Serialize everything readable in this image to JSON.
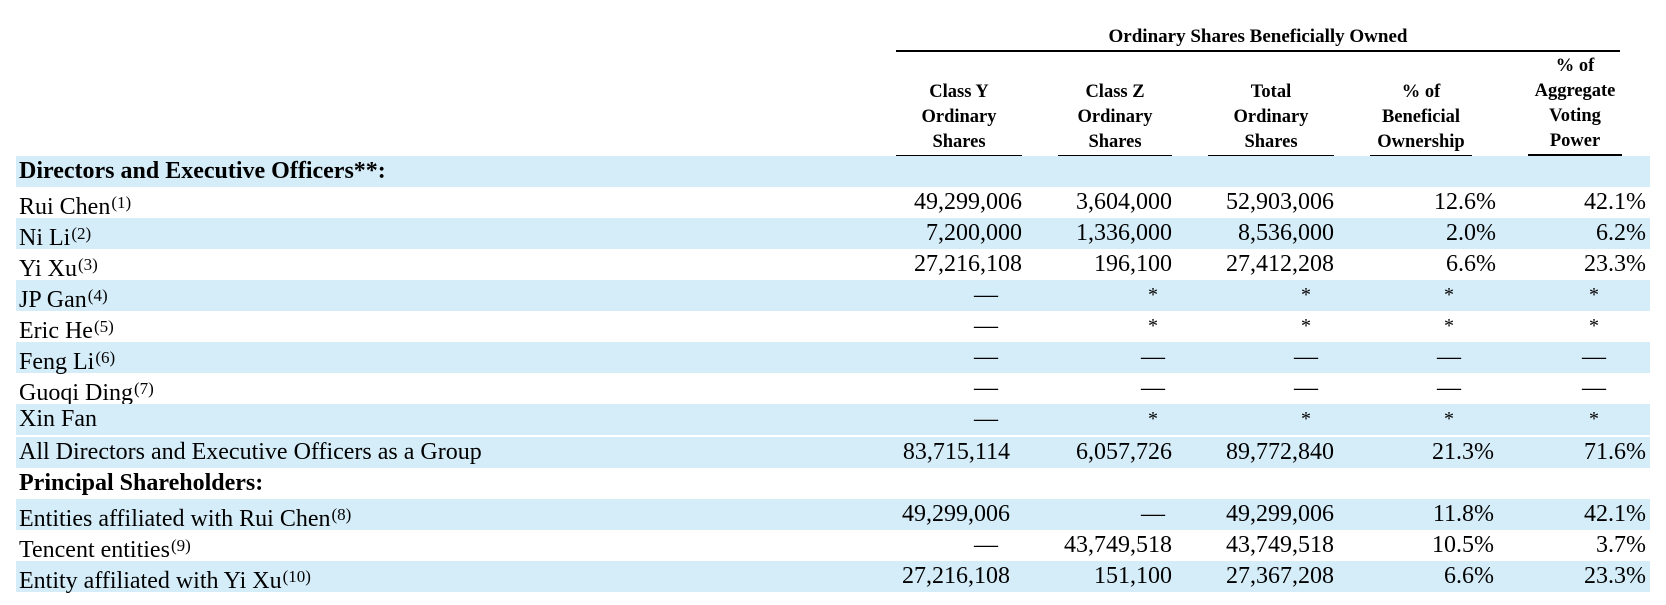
{
  "table": {
    "group_header": "Ordinary Shares Beneficially Owned",
    "columns": [
      {
        "lines": [
          "Class Y",
          "Ordinary",
          "Shares"
        ]
      },
      {
        "lines": [
          "Class Z",
          "Ordinary",
          "Shares"
        ]
      },
      {
        "lines": [
          "Total",
          "Ordinary",
          "Shares"
        ]
      },
      {
        "lines": [
          "% of",
          "Beneficial",
          "Ownership"
        ]
      },
      {
        "lines": [
          "% of",
          "Aggregate",
          "Voting",
          "Power"
        ]
      }
    ],
    "rows": [
      {
        "label": "Directors and Executive Officers**:",
        "note": "",
        "section": true,
        "values": [
          "",
          "",
          "",
          "",
          ""
        ]
      },
      {
        "label": "Rui Chen",
        "note": "(1)",
        "values": [
          "49,299,006",
          "3,604,000",
          "52,903,006",
          "12.6%",
          "42.1%"
        ]
      },
      {
        "label": "Ni Li",
        "note": "(2)",
        "values": [
          "7,200,000",
          "1,336,000",
          "8,536,000",
          "2.0%",
          "6.2%"
        ]
      },
      {
        "label": "Yi Xu",
        "note": "(3)",
        "values": [
          "27,216,108",
          "196,100",
          "27,412,208",
          "6.6%",
          "23.3%"
        ]
      },
      {
        "label": "JP Gan",
        "note": "(4)",
        "values": [
          "—",
          "*",
          "*",
          "*",
          "*"
        ]
      },
      {
        "label": "Eric He",
        "note": "(5)",
        "values": [
          "—",
          "*",
          "*",
          "*",
          "*"
        ]
      },
      {
        "label": "Feng Li",
        "note": "(6)",
        "values": [
          "—",
          "—",
          "—",
          "—",
          "—"
        ]
      },
      {
        "label": "Guoqi Ding",
        "note": "(7)",
        "values": [
          "—",
          "—",
          "—",
          "—",
          "—"
        ]
      },
      {
        "label": "Xin Fan",
        "note": "",
        "values": [
          "—",
          "*",
          "*",
          "*",
          "*"
        ]
      },
      {
        "label": "All Directors and Executive Officers as a Group",
        "note": "",
        "values": [
          "83,715,114",
          "6,057,726",
          "89,772,840",
          "21.3%",
          "71.6%"
        ]
      },
      {
        "label": "Principal Shareholders:",
        "note": "",
        "section": true,
        "values": [
          "",
          "",
          "",
          "",
          ""
        ]
      },
      {
        "label": "Entities affiliated with Rui Chen",
        "note": "(8)",
        "values": [
          "49,299,006",
          "—",
          "49,299,006",
          "11.8%",
          "42.1%"
        ]
      },
      {
        "label": "Tencent entities",
        "note": "(9)",
        "values": [
          "—",
          "43,749,518",
          "43,749,518",
          "10.5%",
          "3.7%"
        ]
      },
      {
        "label": "Entity affiliated with Yi Xu",
        "note": "(10)",
        "values": [
          "27,216,108",
          "151,100",
          "27,367,208",
          "6.6%",
          "23.3%"
        ]
      }
    ]
  }
}
